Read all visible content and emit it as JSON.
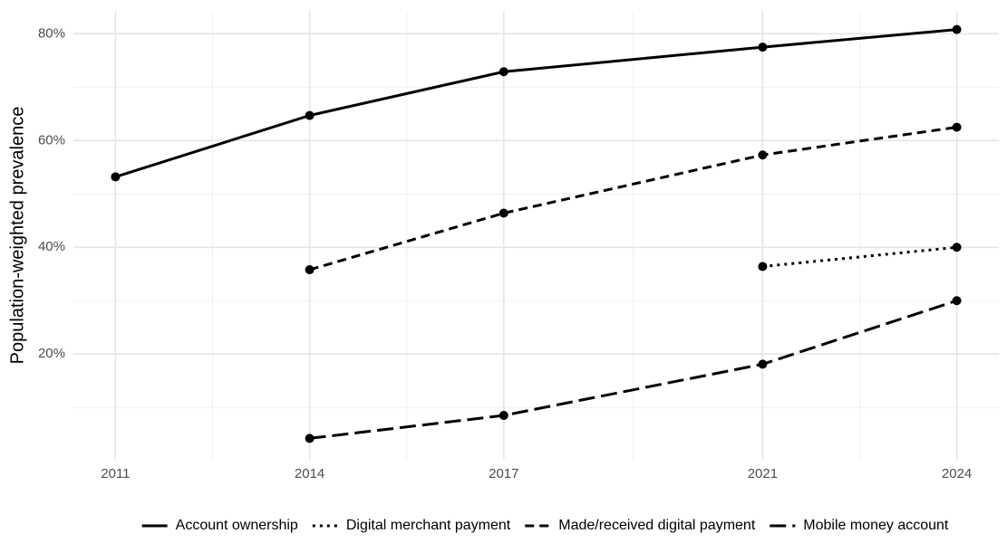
{
  "chart_data": {
    "type": "line",
    "y_label": "Population-weighted prevalence",
    "x": [
      2011,
      2014,
      2017,
      2021,
      2024
    ],
    "xlim": [
      2010.35,
      2024.65
    ],
    "xticks": [
      2011,
      2014,
      2017,
      2021,
      2024
    ],
    "xminor": [
      2012.5,
      2015.5,
      2019,
      2022.5
    ],
    "ylim": [
      0.2,
      84.3
    ],
    "yticks": [
      {
        "value": 20,
        "label": "20%"
      },
      {
        "value": 40,
        "label": "40%"
      },
      {
        "value": 60,
        "label": "60%"
      },
      {
        "value": 80,
        "label": "80%"
      }
    ],
    "yminor": [
      10,
      30,
      50,
      70
    ],
    "grid": true,
    "legend": "bottom",
    "series": [
      {
        "name": "Account ownership",
        "color": "#000000",
        "linetype": "solid",
        "values": [
          53.2,
          64.7,
          72.9,
          77.5,
          80.8
        ]
      },
      {
        "name": "Digital merchant payment",
        "color": "#000000",
        "linetype": "dotted",
        "values": [
          null,
          null,
          null,
          36.4,
          40.0
        ]
      },
      {
        "name": "Made/received digital payment",
        "color": "#000000",
        "linetype": "dashed",
        "values": [
          null,
          35.8,
          46.4,
          57.3,
          62.5
        ]
      },
      {
        "name": "Mobile money account",
        "color": "#000000",
        "linetype": "longdash",
        "values": [
          null,
          4.2,
          8.5,
          18.1,
          30.0
        ]
      }
    ]
  }
}
